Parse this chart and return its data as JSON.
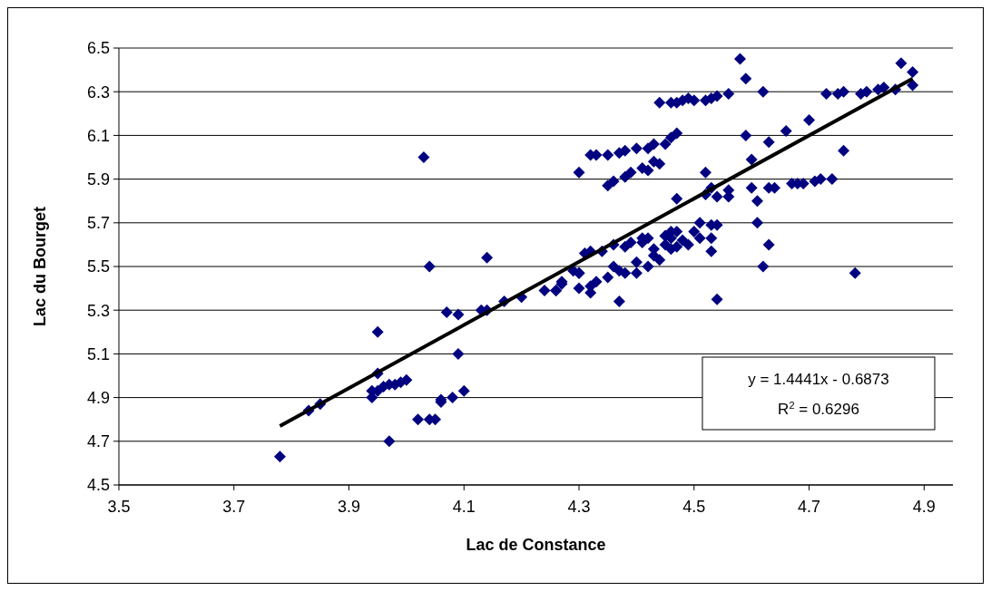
{
  "chart_data": {
    "type": "scatter",
    "xlabel": "Lac de Constance",
    "ylabel": "Lac du Bourget",
    "xlim": [
      3.5,
      4.95
    ],
    "xticks": [
      3.5,
      3.7,
      3.9,
      4.1,
      4.3,
      4.5,
      4.7,
      4.9
    ],
    "ylim": [
      4.5,
      6.5
    ],
    "yticks": [
      4.5,
      4.7,
      4.9,
      5.1,
      5.3,
      5.5,
      5.7,
      5.9,
      6.1,
      6.3,
      6.5
    ],
    "grid": "y",
    "annotations": [
      "y = 1.4441x - 0.6873",
      "R$^{2}$ = 0.6296"
    ],
    "series": [
      {
        "color": "#000080",
        "marker": "diamond",
        "x": [
          3.78,
          3.83,
          3.85,
          3.95,
          3.95,
          3.94,
          3.94,
          3.95,
          3.96,
          3.97,
          3.98,
          3.99,
          4.0,
          3.97,
          4.03,
          4.04,
          4.02,
          4.04,
          4.05,
          4.06,
          4.06,
          4.08,
          4.1,
          4.09,
          4.07,
          4.09,
          4.14,
          4.14,
          4.13,
          4.17,
          4.2,
          4.24,
          4.26,
          4.27,
          4.3,
          4.3,
          4.3,
          4.32,
          4.33,
          4.35,
          4.37,
          4.38,
          4.4,
          4.42,
          4.43,
          4.45,
          4.46,
          4.47,
          4.35,
          4.36,
          4.38,
          4.39,
          4.41,
          4.42,
          4.44,
          4.43,
          4.44,
          4.46,
          4.47,
          4.48,
          4.49,
          4.5,
          4.52,
          4.53,
          4.54,
          4.56,
          4.58,
          4.59,
          4.62,
          4.73,
          4.75,
          4.76,
          4.79,
          4.8,
          4.82,
          4.83,
          4.85,
          4.86,
          4.88,
          4.88,
          4.59,
          4.63,
          4.66,
          4.7,
          4.76,
          4.6,
          4.52,
          4.6,
          4.61,
          4.63,
          4.64,
          4.67,
          4.68,
          4.69,
          4.71,
          4.72,
          4.74,
          4.61,
          4.63,
          4.62,
          4.78,
          4.54,
          4.47,
          4.53,
          4.54,
          4.56,
          4.56,
          4.52,
          4.53,
          4.54,
          4.26,
          4.27,
          4.3,
          4.32,
          4.32,
          4.31,
          4.34,
          4.37,
          4.36,
          4.38,
          4.4,
          4.38,
          4.41,
          4.43,
          4.45,
          4.46,
          4.32,
          4.36,
          4.39,
          4.42,
          4.45,
          4.46,
          4.29,
          4.41,
          4.43,
          4.45,
          4.47,
          4.51,
          4.53,
          4.53,
          4.47,
          4.4,
          4.42,
          4.44,
          4.48,
          4.5,
          4.49,
          4.51,
          4.46,
          4.35,
          4.33,
          4.37
        ],
        "values": [
          4.63,
          4.84,
          4.87,
          5.2,
          5.01,
          4.93,
          4.9,
          4.93,
          4.95,
          4.96,
          4.96,
          4.97,
          4.98,
          4.7,
          6.0,
          5.5,
          4.8,
          4.8,
          4.8,
          4.88,
          4.89,
          4.9,
          4.93,
          5.1,
          5.29,
          5.28,
          5.3,
          5.54,
          5.3,
          5.34,
          5.36,
          5.39,
          5.39,
          5.42,
          5.4,
          5.47,
          5.93,
          6.01,
          6.01,
          6.01,
          6.02,
          6.03,
          6.04,
          6.04,
          6.06,
          6.06,
          6.09,
          6.11,
          5.87,
          5.89,
          5.91,
          5.93,
          5.95,
          5.94,
          5.97,
          5.98,
          6.25,
          6.25,
          6.25,
          6.26,
          6.27,
          6.26,
          6.26,
          6.27,
          6.28,
          6.29,
          6.45,
          6.36,
          6.3,
          6.29,
          6.29,
          6.3,
          6.29,
          6.3,
          6.31,
          6.32,
          6.31,
          6.43,
          6.39,
          6.33,
          6.1,
          6.07,
          6.12,
          6.17,
          6.03,
          5.99,
          5.93,
          5.86,
          5.8,
          5.86,
          5.86,
          5.88,
          5.88,
          5.88,
          5.89,
          5.9,
          5.9,
          5.7,
          5.6,
          5.5,
          5.47,
          5.35,
          5.81,
          5.86,
          5.82,
          5.85,
          5.82,
          5.83,
          5.57,
          5.69,
          5.39,
          5.43,
          5.47,
          5.38,
          5.41,
          5.56,
          5.57,
          5.34,
          5.5,
          5.47,
          5.47,
          5.59,
          5.63,
          5.55,
          5.6,
          5.63,
          5.57,
          5.6,
          5.61,
          5.63,
          5.64,
          5.66,
          5.48,
          5.61,
          5.58,
          5.64,
          5.66,
          5.7,
          5.69,
          5.63,
          5.59,
          5.52,
          5.5,
          5.53,
          5.62,
          5.66,
          5.6,
          5.63,
          5.58,
          5.45,
          5.43,
          5.48
        ]
      },
      {
        "type": "line",
        "color": "#000000",
        "marker": "none",
        "line_style": "solid",
        "x": [
          3.78,
          4.88
        ],
        "values": [
          4.77,
          6.36
        ]
      }
    ]
  }
}
